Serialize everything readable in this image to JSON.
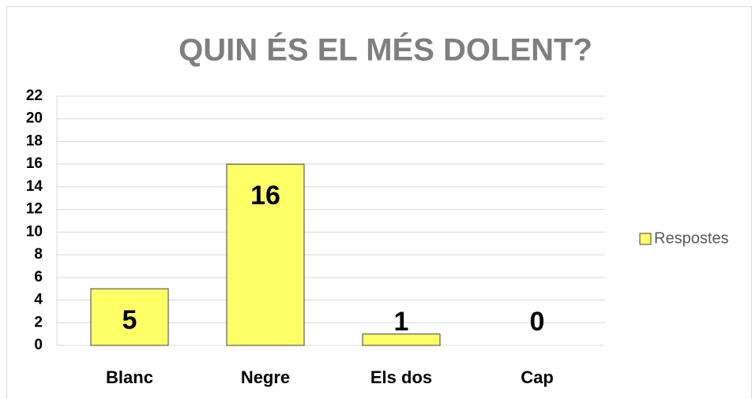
{
  "chart_data": {
    "type": "bar",
    "title": "QUIN ÉS EL MÉS DOLENT?",
    "categories": [
      "Blanc",
      "Negre",
      "Els dos",
      "Cap"
    ],
    "series": [
      {
        "name": "Respostes",
        "color": "#ffff66",
        "values": [
          5,
          16,
          1,
          0
        ]
      }
    ],
    "ylim": [
      0,
      22
    ],
    "yticks": [
      0,
      2,
      4,
      6,
      8,
      10,
      12,
      14,
      16,
      18,
      20,
      22
    ],
    "grid": true,
    "legend": "right"
  }
}
